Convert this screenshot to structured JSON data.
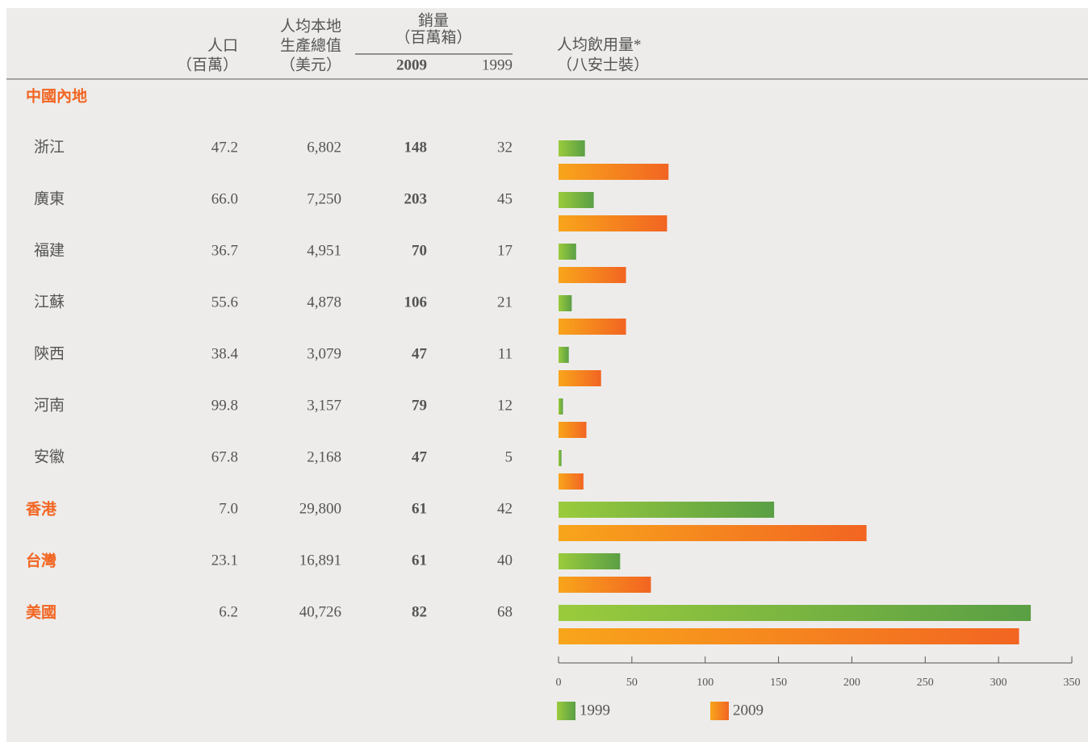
{
  "chart_data": {
    "type": "bar",
    "orientation": "horizontal",
    "columns": [
      {
        "header": [
          "人口",
          "（百萬）"
        ]
      },
      {
        "header": [
          "人均本地",
          "生產總值",
          "（美元）"
        ]
      },
      {
        "header": [
          "2009"
        ],
        "bold": true
      },
      {
        "header": [
          "1999"
        ]
      }
    ],
    "column_group_header": [
      "銷量",
      "（百萬箱）"
    ],
    "chart_header": [
      "人均飲用量*",
      "（八安士裝）"
    ],
    "groups": [
      {
        "title": "中國內地",
        "rows": [
          {
            "name": "浙江",
            "cells": [
              "47.2",
              "6,802",
              "148",
              "32"
            ]
          },
          {
            "name": "廣東",
            "cells": [
              "66.0",
              "7,250",
              "203",
              "45"
            ]
          },
          {
            "name": "福建",
            "cells": [
              "36.7",
              "4,951",
              "70",
              "17"
            ]
          },
          {
            "name": "江蘇",
            "cells": [
              "55.6",
              "4,878",
              "106",
              "21"
            ]
          },
          {
            "name": "陝西",
            "cells": [
              "38.4",
              "3,079",
              "47",
              "11"
            ]
          },
          {
            "name": "河南",
            "cells": [
              "99.8",
              "3,157",
              "79",
              "12"
            ]
          },
          {
            "name": "安徽",
            "cells": [
              "67.8",
              "2,168",
              "47",
              "5"
            ]
          }
        ]
      }
    ],
    "rows": [
      {
        "name": "香港",
        "cells": [
          "7.0",
          "29,800",
          "61",
          "42"
        ]
      },
      {
        "name": "台灣",
        "cells": [
          "23.1",
          "16,891",
          "61",
          "40"
        ]
      },
      {
        "name": "美國",
        "cells": [
          "6.2",
          "40,726",
          "82",
          "68"
        ]
      }
    ],
    "series": [
      {
        "name": "1999",
        "color": [
          "#9acb3c",
          "#5a9f45"
        ],
        "values": [
          18,
          24,
          12,
          9,
          7,
          3,
          2,
          147,
          42,
          322
        ]
      },
      {
        "name": "2009",
        "color": [
          "#f8a51b",
          "#f26522"
        ],
        "values": [
          75,
          74,
          46,
          46,
          29,
          19,
          17,
          210,
          63,
          314
        ]
      }
    ],
    "xlim": [
      0,
      350
    ],
    "xticks": [
      0,
      50,
      100,
      150,
      200,
      250,
      300,
      350
    ]
  }
}
